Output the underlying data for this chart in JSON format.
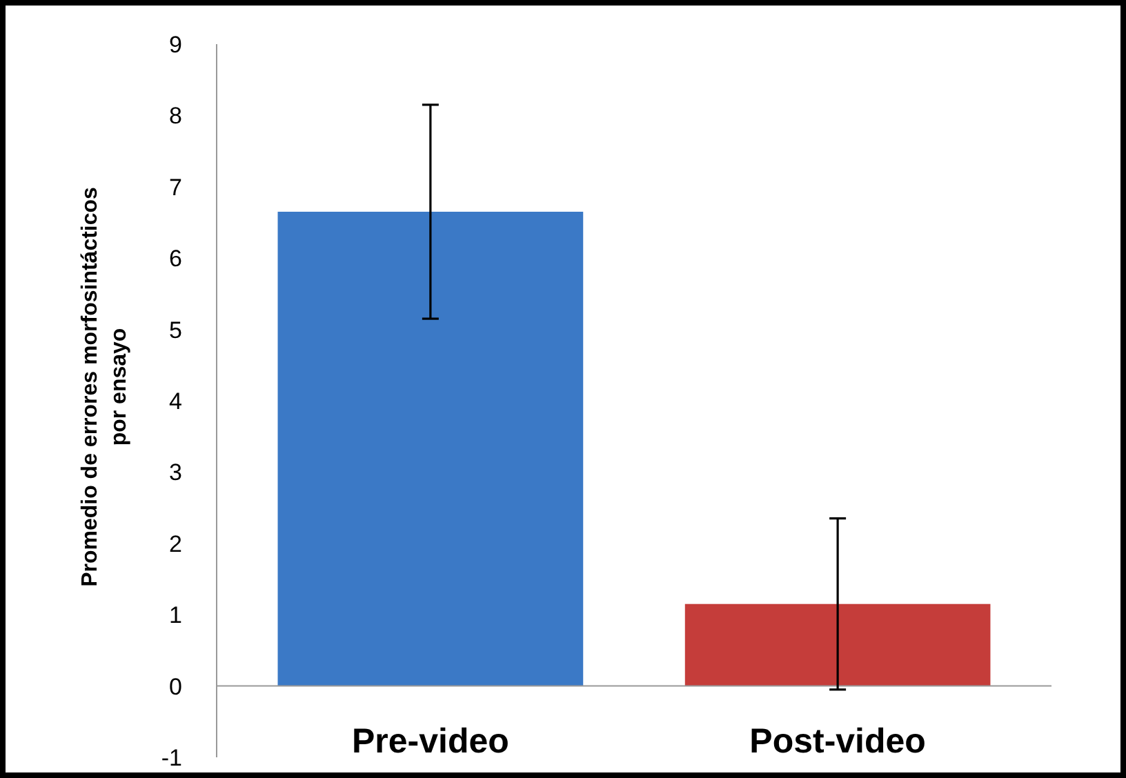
{
  "chart_data": {
    "type": "bar",
    "ylabel": "Promedio de errores morfosintácticos por ensayo",
    "categories": [
      "Pre-video",
      "Post-video"
    ],
    "values": [
      6.65,
      1.15
    ],
    "colors": [
      "#3b79c6",
      "#c53d3a"
    ],
    "errors": [
      1.5,
      1.2
    ],
    "ylim": [
      -1,
      9
    ],
    "yticks": [
      -1,
      0,
      1,
      2,
      3,
      4,
      5,
      6,
      7,
      8,
      9
    ]
  }
}
